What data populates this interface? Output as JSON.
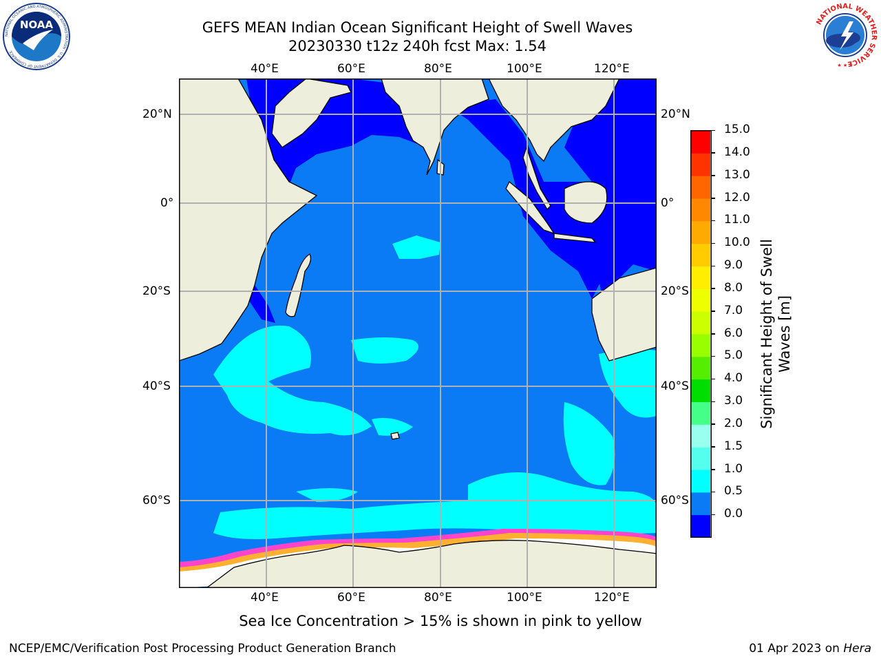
{
  "header": {
    "title_line1": "GEFS MEAN Indian Ocean Significant Height of Swell Waves",
    "title_line2": "20230330 t12z 240h fcst   Max: 1.54"
  },
  "logos": {
    "left": "noaa-logo",
    "left_text": "NOAA",
    "left_ring_text": "NATIONAL OCEANIC AND ATMOSPHERIC ADMINISTRATION · U.S. DEPARTMENT OF COMMERCE",
    "right": "nws-logo",
    "right_ring_text": "NATIONAL WEATHER SERVICE"
  },
  "map": {
    "lon_ticks": [
      "40°E",
      "60°E",
      "80°E",
      "100°E",
      "120°E"
    ],
    "lat_ticks": [
      "20°N",
      "0°",
      "20°S",
      "40°S",
      "60°S"
    ],
    "colors": {
      "land": "#eeeedc",
      "coast": "#000000",
      "grid": "#b0b0b0",
      "deep_blue": "#0000ff",
      "mid_blue": "#0a7af5",
      "cyan": "#00ffff",
      "ice_pink": "#ff44cc",
      "ice_orange": "#ffb030",
      "ice_white": "#ffffff"
    }
  },
  "colorbar": {
    "label": "Significant Height of Swell Waves [m]",
    "ticks": [
      "15.0",
      "14.0",
      "13.0",
      "12.0",
      "11.0",
      "10.0",
      "9.0",
      "8.0",
      "7.0",
      "6.0",
      "5.0",
      "4.0",
      "3.0",
      "2.0",
      "1.5",
      "1.0",
      "0.5",
      "0.0"
    ],
    "colors_top_to_bottom": [
      "#ff0000",
      "#ff3300",
      "#ff6600",
      "#ff8800",
      "#ffaa00",
      "#ffcc00",
      "#ffee00",
      "#eeff00",
      "#ccff00",
      "#99ff00",
      "#55ee00",
      "#00dd00",
      "#44ff88",
      "#99ffee",
      "#55ffee",
      "#00ffff",
      "#0a7af5",
      "#0000ff"
    ]
  },
  "footer": {
    "caption": "Sea Ice Concentration > 15% is shown in pink to yellow",
    "left": "NCEP/EMC/Verification Post Processing Product Generation Branch",
    "right_date": "01 Apr 2023 on ",
    "right_host": "Hera"
  }
}
